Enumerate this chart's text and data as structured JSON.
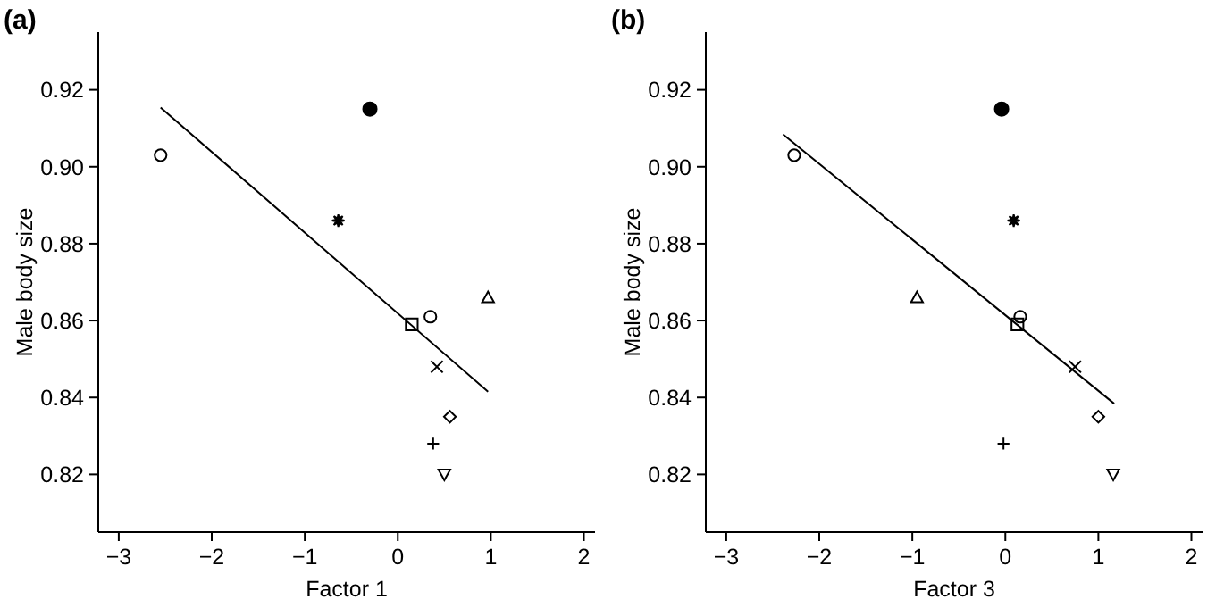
{
  "chart_data": [
    {
      "type": "scatter",
      "title": "(a)",
      "xlabel": "Factor 1",
      "ylabel": "Male body size",
      "xlim": [
        -3.22,
        2.12
      ],
      "ylim": [
        0.805,
        0.935
      ],
      "xticks": [
        {
          "value": -3,
          "label": "−3"
        },
        {
          "value": -2,
          "label": "−2"
        },
        {
          "value": -1,
          "label": "−1"
        },
        0,
        1,
        2
      ],
      "yticks": [
        {
          "value": 0.82,
          "label": "0.82"
        },
        {
          "value": 0.84,
          "label": "0.84"
        },
        {
          "value": 0.86,
          "label": "0.86"
        },
        {
          "value": 0.88,
          "label": "0.88"
        },
        {
          "value": 0.9,
          "label": "0.90"
        },
        {
          "value": 0.92,
          "label": "0.92"
        }
      ],
      "series": [
        {
          "color": "#000000",
          "x": [
            -0.3
          ],
          "values": [
            0.915
          ],
          "marker": "circle-filled"
        },
        {
          "color": "#000000",
          "x": [
            -2.55,
            0.35
          ],
          "values": [
            0.903,
            0.861
          ],
          "marker": "circle"
        },
        {
          "color": "#000000",
          "x": [
            -0.64
          ],
          "values": [
            0.886
          ],
          "marker": "star"
        },
        {
          "color": "#000000",
          "x": [
            0.97
          ],
          "values": [
            0.866
          ],
          "marker": "triangle"
        },
        {
          "color": "#000000",
          "x": [
            0.15
          ],
          "values": [
            0.859
          ],
          "marker": "square"
        },
        {
          "color": "#000000",
          "x": [
            0.42
          ],
          "values": [
            0.848
          ],
          "marker": "x"
        },
        {
          "color": "#000000",
          "x": [
            0.56
          ],
          "values": [
            0.835
          ],
          "marker": "diamond"
        },
        {
          "color": "#000000",
          "x": [
            0.38
          ],
          "values": [
            0.828
          ],
          "marker": "cross"
        },
        {
          "color": "#000000",
          "x": [
            0.5
          ],
          "values": [
            0.82
          ],
          "marker": "triangle-down"
        },
        {
          "type": "line",
          "color": "#000000",
          "x": [
            -2.55,
            0.97
          ],
          "values": [
            0.9154,
            0.8415
          ],
          "marker": "none",
          "line_style": "solid"
        }
      ]
    },
    {
      "type": "scatter",
      "title": "(b)",
      "xlabel": "Factor 3",
      "ylabel": "Male body size",
      "xlim": [
        -3.22,
        2.12
      ],
      "ylim": [
        0.805,
        0.935
      ],
      "xticks": [
        {
          "value": -3,
          "label": "−3"
        },
        {
          "value": -2,
          "label": "−2"
        },
        {
          "value": -1,
          "label": "−1"
        },
        0,
        1,
        2
      ],
      "yticks": [
        {
          "value": 0.82,
          "label": "0.82"
        },
        {
          "value": 0.84,
          "label": "0.84"
        },
        {
          "value": 0.86,
          "label": "0.86"
        },
        {
          "value": 0.88,
          "label": "0.88"
        },
        {
          "value": 0.9,
          "label": "0.90"
        },
        {
          "value": 0.92,
          "label": "0.92"
        }
      ],
      "series": [
        {
          "color": "#000000",
          "x": [
            -0.04
          ],
          "values": [
            0.915
          ],
          "marker": "circle-filled"
        },
        {
          "color": "#000000",
          "x": [
            -2.27,
            0.16
          ],
          "values": [
            0.903,
            0.861
          ],
          "marker": "circle"
        },
        {
          "color": "#000000",
          "x": [
            0.09
          ],
          "values": [
            0.886
          ],
          "marker": "star"
        },
        {
          "color": "#000000",
          "x": [
            -0.95
          ],
          "values": [
            0.866
          ],
          "marker": "triangle"
        },
        {
          "color": "#000000",
          "x": [
            0.13
          ],
          "values": [
            0.859
          ],
          "marker": "square"
        },
        {
          "color": "#000000",
          "x": [
            0.75
          ],
          "values": [
            0.848
          ],
          "marker": "x"
        },
        {
          "color": "#000000",
          "x": [
            1.0
          ],
          "values": [
            0.835
          ],
          "marker": "diamond"
        },
        {
          "color": "#000000",
          "x": [
            -0.02
          ],
          "values": [
            0.828
          ],
          "marker": "cross"
        },
        {
          "color": "#000000",
          "x": [
            1.16
          ],
          "values": [
            0.82
          ],
          "marker": "triangle-down"
        },
        {
          "type": "line",
          "color": "#000000",
          "x": [
            -2.39,
            1.17
          ],
          "values": [
            0.9084,
            0.8384
          ],
          "marker": "none",
          "line_style": "solid"
        }
      ]
    }
  ]
}
